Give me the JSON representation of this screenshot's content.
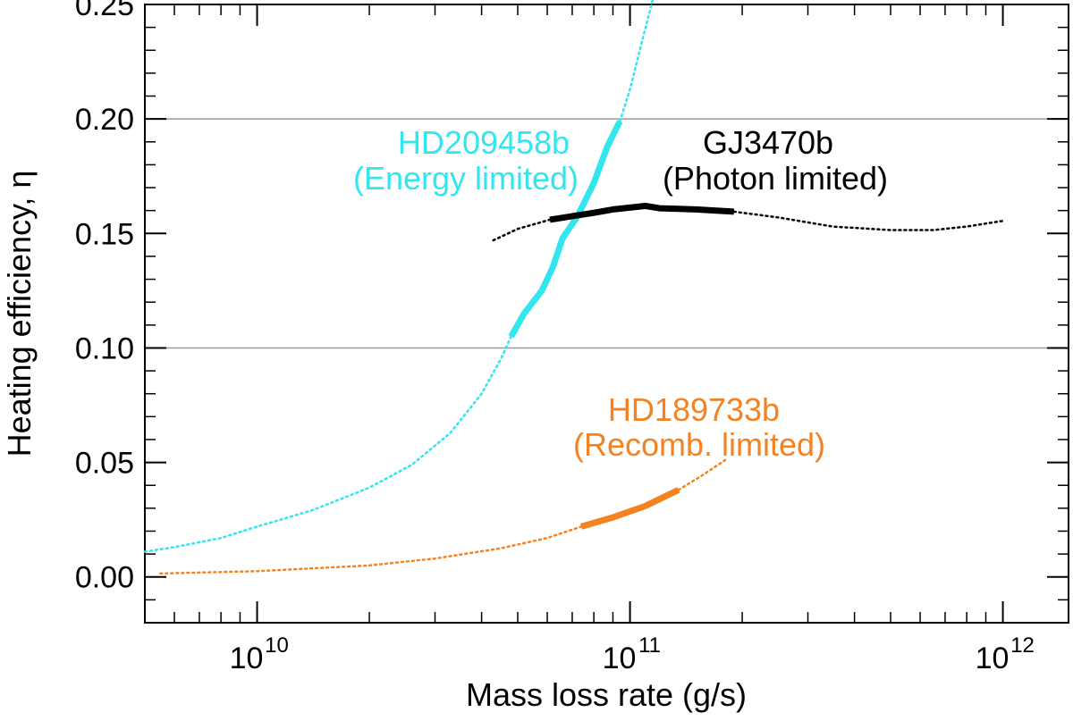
{
  "chart_data": {
    "type": "line",
    "title": "",
    "xlabel": "Mass loss rate (g/s)",
    "ylabel": "Heating efficiency, η",
    "xscale": "log",
    "xlim": [
      5000000000.0,
      1500000000000.0
    ],
    "ylim": [
      -0.02,
      0.25
    ],
    "yticks": [
      "0.00",
      "0.05",
      "0.10",
      "0.15",
      "0.20",
      "0.25"
    ],
    "xticks": [
      {
        "base": "10",
        "exp": "10",
        "value": 10000000000.0
      },
      {
        "base": "10",
        "exp": "11",
        "value": 100000000000.0
      },
      {
        "base": "10",
        "exp": "12",
        "value": 1000000000000.0
      }
    ],
    "reference_lines": [
      0.1,
      0.2
    ],
    "series": [
      {
        "name": "HD209458b",
        "annotation": [
          "HD209458b",
          "(Energy limited)"
        ],
        "color": "#33e6ee",
        "dotted": [
          [
            5000000000.0,
            0.011
          ],
          [
            6000000000.0,
            0.013
          ],
          [
            8000000000.0,
            0.017
          ],
          [
            10000000000.0,
            0.022
          ],
          [
            14000000000.0,
            0.029
          ],
          [
            20000000000.0,
            0.039
          ],
          [
            26000000000.0,
            0.049
          ],
          [
            33000000000.0,
            0.063
          ],
          [
            40000000000.0,
            0.08
          ],
          [
            45000000000.0,
            0.095
          ],
          [
            48000000000.0,
            0.105
          ]
        ],
        "solid": [
          [
            48000000000.0,
            0.105
          ],
          [
            52000000000.0,
            0.115
          ],
          [
            58000000000.0,
            0.125
          ],
          [
            62000000000.0,
            0.135
          ],
          [
            66000000000.0,
            0.148
          ],
          [
            72000000000.0,
            0.157
          ],
          [
            80000000000.0,
            0.172
          ],
          [
            87000000000.0,
            0.188
          ],
          [
            94000000000.0,
            0.199
          ]
        ],
        "dotted_end": [
          [
            94000000000.0,
            0.199
          ],
          [
            100000000000.0,
            0.213
          ],
          [
            107000000000.0,
            0.232
          ],
          [
            115000000000.0,
            0.252
          ]
        ]
      },
      {
        "name": "GJ3470b",
        "annotation": [
          "GJ3470b",
          "(Photon limited)"
        ],
        "color": "#000000",
        "dotted": [
          [
            43000000000.0,
            0.147
          ],
          [
            50000000000.0,
            0.152
          ],
          [
            61000000000.0,
            0.156
          ]
        ],
        "solid": [
          [
            61000000000.0,
            0.156
          ],
          [
            80000000000.0,
            0.159
          ],
          [
            90000000000.0,
            0.1605
          ],
          [
            110000000000.0,
            0.162
          ],
          [
            120000000000.0,
            0.161
          ],
          [
            150000000000.0,
            0.1605
          ],
          [
            190000000000.0,
            0.1595
          ]
        ],
        "dotted_end": [
          [
            190000000000.0,
            0.1595
          ],
          [
            250000000000.0,
            0.157
          ],
          [
            350000000000.0,
            0.153
          ],
          [
            500000000000.0,
            0.1515
          ],
          [
            650000000000.0,
            0.1515
          ],
          [
            800000000000.0,
            0.153
          ],
          [
            1000000000000.0,
            0.1555
          ]
        ]
      },
      {
        "name": "HD189733b",
        "annotation": [
          "HD189733b",
          "(Recomb. limited)"
        ],
        "color": "#f58220",
        "dotted": [
          [
            5500000000.0,
            0.0015
          ],
          [
            10000000000.0,
            0.0025
          ],
          [
            20000000000.0,
            0.005
          ],
          [
            30000000000.0,
            0.008
          ],
          [
            45000000000.0,
            0.0125
          ],
          [
            60000000000.0,
            0.017
          ],
          [
            74000000000.0,
            0.022
          ]
        ],
        "solid": [
          [
            74000000000.0,
            0.022
          ],
          [
            90000000000.0,
            0.026
          ],
          [
            110000000000.0,
            0.031
          ],
          [
            135000000000.0,
            0.038
          ]
        ],
        "dotted_end": [
          [
            135000000000.0,
            0.038
          ],
          [
            155000000000.0,
            0.044
          ],
          [
            180000000000.0,
            0.051
          ]
        ]
      }
    ]
  }
}
